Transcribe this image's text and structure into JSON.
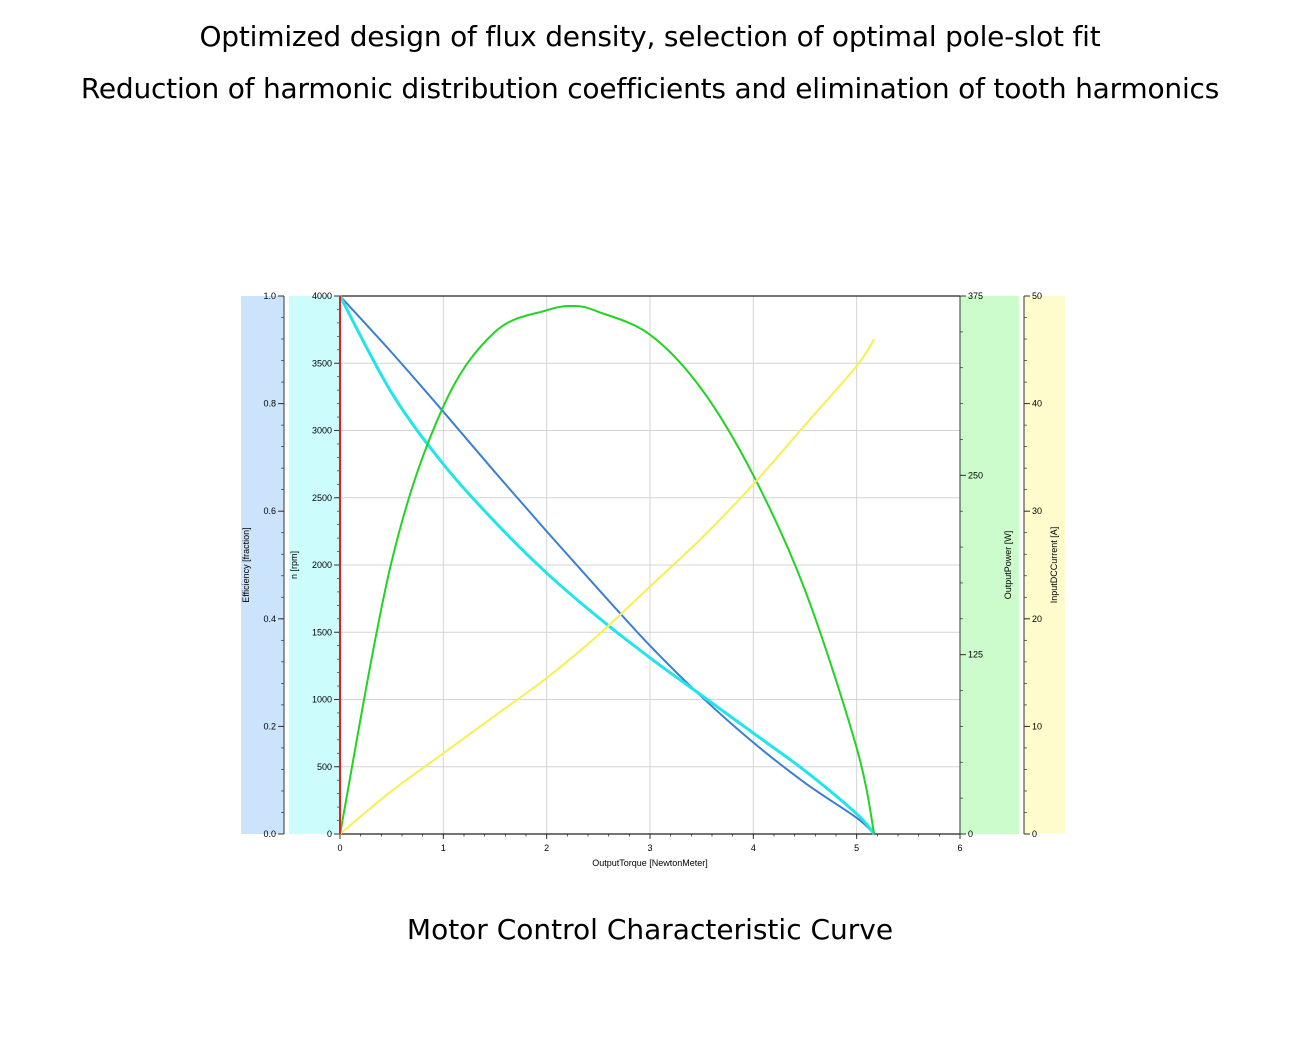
{
  "headline": {
    "line1": "Optimized design of flux density, selection of optimal pole-slot fit",
    "line2": "Reduction of harmonic distribution coefficients and elimination of tooth harmonics"
  },
  "caption": "Motor Control Characteristic Curve",
  "chart_data": {
    "type": "line",
    "xlabel": "OutputTorque [NewtonMeter]",
    "xlim": [
      0,
      6
    ],
    "x_ticks": [
      "0",
      "1",
      "2",
      "3",
      "4",
      "5",
      "6"
    ],
    "grid": true,
    "axes": [
      {
        "id": "efficiency",
        "label": "Efficiency [fraction]",
        "lim": [
          0,
          1.0
        ],
        "ticks": [
          "0.0",
          "0.2",
          "0.4",
          "0.6",
          "0.8",
          "1.0"
        ],
        "band_color": "#cce4fb",
        "side": "left"
      },
      {
        "id": "speed",
        "label": "n [rpm]",
        "lim": [
          0,
          4000
        ],
        "ticks": [
          "0",
          "500",
          "1000",
          "1500",
          "2000",
          "2500",
          "3000",
          "3500",
          "4000"
        ],
        "band_color": "#ccfcfc",
        "side": "left"
      },
      {
        "id": "power",
        "label": "OutputPower [W]",
        "lim": [
          0,
          375
        ],
        "ticks": [
          "0",
          "125",
          "250",
          "375"
        ],
        "band_color": "#ccfccc",
        "side": "right"
      },
      {
        "id": "current",
        "label": "InputDCCurrent [A]",
        "lim": [
          0,
          50
        ],
        "ticks": [
          "0",
          "10",
          "20",
          "30",
          "40",
          "50"
        ],
        "band_color": "#fefccc",
        "side": "right"
      }
    ],
    "series": [
      {
        "axis": "speed",
        "color": "#3a7fd6",
        "x": [
          0,
          0.5,
          1,
          1.5,
          2,
          2.5,
          3,
          3.5,
          4,
          4.5,
          5,
          5.17
        ],
        "y": [
          4000,
          3580,
          3140,
          2690,
          2250,
          1820,
          1400,
          1020,
          680,
          380,
          120,
          0
        ]
      },
      {
        "axis": "speed",
        "color": "#22e4ec",
        "x": [
          0,
          0.5,
          1,
          1.5,
          2,
          2.5,
          3,
          3.5,
          4,
          4.5,
          5,
          5.17
        ],
        "y": [
          4000,
          3280,
          2750,
          2320,
          1940,
          1610,
          1310,
          1030,
          750,
          470,
          150,
          0
        ]
      },
      {
        "axis": "power",
        "color": "#22d422",
        "x": [
          0,
          0.5,
          1,
          1.5,
          2,
          2.27,
          2.5,
          3,
          3.5,
          4,
          4.5,
          5,
          5.17
        ],
        "y": [
          0,
          190,
          298,
          350,
          365,
          368,
          364,
          348,
          310,
          250,
          170,
          60,
          0
        ]
      },
      {
        "axis": "current",
        "color": "#f6f050",
        "x": [
          0,
          0.5,
          1,
          1.5,
          2,
          2.5,
          3,
          3.5,
          4,
          4.5,
          5,
          5.17
        ],
        "y": [
          0,
          4,
          7.5,
          11,
          14.5,
          18.5,
          23,
          27.5,
          32.5,
          38,
          43.5,
          46
        ]
      },
      {
        "axis": "efficiency",
        "color": "#e02020",
        "x": [
          0,
          0
        ],
        "y": [
          0,
          1.0
        ]
      }
    ]
  }
}
